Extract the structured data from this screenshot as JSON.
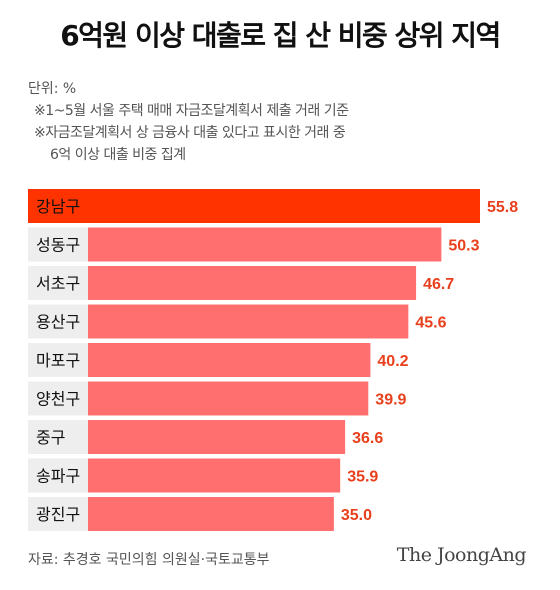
{
  "header": {
    "title": "6억원 이상 대출로 집 산 비중 상위 지역",
    "unit": "단위: %",
    "note1": "※1~5월 서울 주택 매매 자금조달계획서 제출 거래 기준",
    "note2": "※자금조달계획서 상 금융사 대출 있다고 표시한 거래 중",
    "note3": "6억 이상 대출 비중 집계"
  },
  "chart_data": {
    "type": "bar",
    "orientation": "horizontal",
    "categories": [
      "강남구",
      "성동구",
      "서초구",
      "용산구",
      "마포구",
      "양천구",
      "중구",
      "송파구",
      "광진구"
    ],
    "values": [
      55.8,
      50.3,
      46.7,
      45.6,
      40.2,
      39.9,
      36.6,
      35.9,
      35.0
    ],
    "value_labels": [
      "55.8",
      "50.3",
      "46.7",
      "45.6",
      "40.2",
      "39.9",
      "36.6",
      "35.9",
      "35.0"
    ],
    "title": "6억원 이상 대출로 집 산 비중 상위 지역",
    "xlabel": "",
    "ylabel": "",
    "xlim": [
      0,
      55.8
    ],
    "grid": false,
    "colors": {
      "highlight": "#ff3300",
      "bar": "#ff6f70",
      "label_bg": "#eeeeee",
      "value_text": "#e8401c"
    }
  },
  "footer": {
    "source": "자료: 추경호 국민의힘 의원실·국토교통부",
    "logo": "The JoongAng"
  }
}
